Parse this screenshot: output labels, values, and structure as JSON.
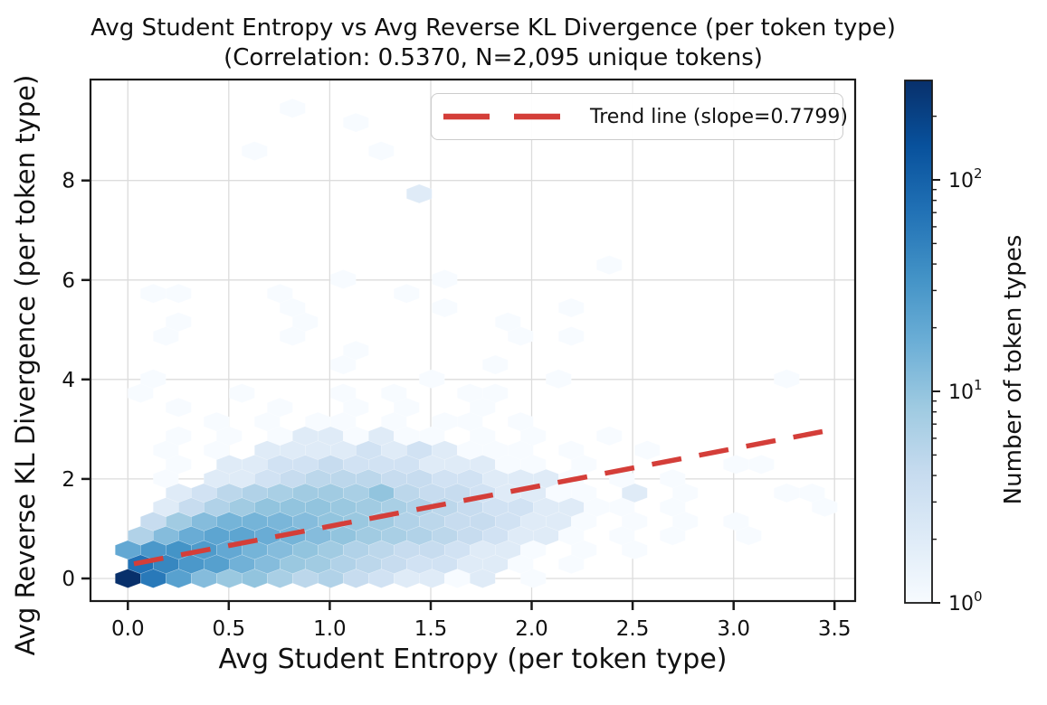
{
  "chart_data": {
    "type": "hexbin",
    "title": "Avg Student Entropy vs Avg Reverse KL Divergence (per token type)",
    "subtitle": "(Correlation: 0.5370, N=2,095 unique tokens)",
    "correlation": 0.537,
    "n_unique_tokens": "2,095",
    "xlabel": "Avg Student Entropy (per token type)",
    "ylabel": "Avg Reverse KL Divergence (per token type)",
    "xlim": [
      -0.185,
      3.602
    ],
    "ylim": [
      -0.455,
      10.03
    ],
    "x_tick_values": [
      0.0,
      0.5,
      1.0,
      1.5,
      2.0,
      2.5,
      3.0,
      3.5
    ],
    "x_tick_labels": [
      "0.0",
      "0.5",
      "1.0",
      "1.5",
      "2.0",
      "2.5",
      "3.0",
      "3.5"
    ],
    "y_tick_values": [
      0,
      2,
      4,
      6,
      8
    ],
    "y_tick_labels": [
      "0",
      "2",
      "4",
      "6",
      "8"
    ],
    "grid": true,
    "grid_color": "#dcdcdc",
    "frame_color": "#1a1a1a",
    "legend_position": "upper right",
    "trend": {
      "label": "Trend line (slope=0.7799)",
      "slope": 0.7799,
      "intercept": 0.27,
      "x_start": 0.03,
      "x_end": 3.44,
      "color": "#d43e39",
      "style": "dashed"
    },
    "colorbar": {
      "label": "Number of token types",
      "scale": "log",
      "vmin": 1,
      "vmax": 300,
      "tick_exponents": [
        0,
        1,
        2
      ],
      "cmap": "Blues",
      "cmap_stops": [
        "#f7fbff",
        "#deebf7",
        "#c6dbef",
        "#9ecae1",
        "#6baed6",
        "#4292c6",
        "#2171b5",
        "#08519c",
        "#08306b"
      ]
    },
    "hexbin": {
      "cell_dx": 0.1255,
      "cell_dy": 0.2864,
      "note": "cells are [col i, row j, count]; x=(i+(j%2)*0.5)*cell_dx, y=j*cell_dy",
      "cells": [
        [
          0,
          0,
          300
        ],
        [
          1,
          0,
          60
        ],
        [
          2,
          0,
          24
        ],
        [
          3,
          0,
          12
        ],
        [
          4,
          0,
          9
        ],
        [
          5,
          0,
          10
        ],
        [
          6,
          0,
          7
        ],
        [
          7,
          0,
          5
        ],
        [
          8,
          0,
          6
        ],
        [
          9,
          0,
          4
        ],
        [
          10,
          0,
          3
        ],
        [
          11,
          0,
          2
        ],
        [
          12,
          0,
          2
        ],
        [
          13,
          0,
          1
        ],
        [
          14,
          0,
          2
        ],
        [
          16,
          0,
          1
        ],
        [
          0,
          1,
          70
        ],
        [
          1,
          1,
          45
        ],
        [
          2,
          1,
          30
        ],
        [
          3,
          1,
          25
        ],
        [
          4,
          1,
          16
        ],
        [
          5,
          1,
          12
        ],
        [
          6,
          1,
          9
        ],
        [
          7,
          1,
          8
        ],
        [
          8,
          1,
          6
        ],
        [
          9,
          1,
          5
        ],
        [
          10,
          1,
          4
        ],
        [
          11,
          1,
          3
        ],
        [
          12,
          1,
          3
        ],
        [
          13,
          1,
          2
        ],
        [
          14,
          1,
          2
        ],
        [
          15,
          1,
          1
        ],
        [
          17,
          1,
          1
        ],
        [
          0,
          2,
          20
        ],
        [
          1,
          2,
          30
        ],
        [
          2,
          2,
          34
        ],
        [
          3,
          2,
          28
        ],
        [
          4,
          2,
          20
        ],
        [
          5,
          2,
          15
        ],
        [
          6,
          2,
          12
        ],
        [
          7,
          2,
          10
        ],
        [
          8,
          2,
          8
        ],
        [
          9,
          2,
          6
        ],
        [
          10,
          2,
          5
        ],
        [
          11,
          2,
          4
        ],
        [
          12,
          2,
          4
        ],
        [
          13,
          2,
          3
        ],
        [
          14,
          2,
          2
        ],
        [
          15,
          2,
          2
        ],
        [
          16,
          2,
          1
        ],
        [
          18,
          2,
          1
        ],
        [
          20,
          2,
          1
        ],
        [
          0,
          3,
          6
        ],
        [
          1,
          3,
          12
        ],
        [
          2,
          3,
          18
        ],
        [
          3,
          3,
          22
        ],
        [
          4,
          3,
          22
        ],
        [
          5,
          3,
          18
        ],
        [
          6,
          3,
          15
        ],
        [
          7,
          3,
          12
        ],
        [
          8,
          3,
          10
        ],
        [
          9,
          3,
          8
        ],
        [
          10,
          3,
          7
        ],
        [
          11,
          3,
          6
        ],
        [
          12,
          3,
          5
        ],
        [
          13,
          3,
          4
        ],
        [
          14,
          3,
          3
        ],
        [
          15,
          3,
          2
        ],
        [
          16,
          3,
          2
        ],
        [
          17,
          3,
          1
        ],
        [
          19,
          3,
          1
        ],
        [
          21,
          3,
          1
        ],
        [
          24,
          3,
          1
        ],
        [
          1,
          4,
          4
        ],
        [
          2,
          4,
          8
        ],
        [
          3,
          4,
          12
        ],
        [
          4,
          4,
          15
        ],
        [
          5,
          4,
          15
        ],
        [
          6,
          4,
          14
        ],
        [
          7,
          4,
          12
        ],
        [
          8,
          4,
          10
        ],
        [
          9,
          4,
          9
        ],
        [
          10,
          4,
          8
        ],
        [
          11,
          4,
          6
        ],
        [
          12,
          4,
          5
        ],
        [
          13,
          4,
          4
        ],
        [
          14,
          4,
          4
        ],
        [
          15,
          4,
          3
        ],
        [
          16,
          4,
          2
        ],
        [
          17,
          4,
          2
        ],
        [
          18,
          4,
          1
        ],
        [
          20,
          4,
          1
        ],
        [
          22,
          4,
          1
        ],
        [
          24,
          4,
          1
        ],
        [
          1,
          5,
          2
        ],
        [
          2,
          5,
          4
        ],
        [
          3,
          5,
          6
        ],
        [
          4,
          5,
          8
        ],
        [
          5,
          5,
          10
        ],
        [
          6,
          5,
          10
        ],
        [
          7,
          5,
          10
        ],
        [
          8,
          5,
          9
        ],
        [
          9,
          5,
          8
        ],
        [
          10,
          5,
          7
        ],
        [
          11,
          5,
          6
        ],
        [
          12,
          5,
          5
        ],
        [
          13,
          5,
          4
        ],
        [
          14,
          5,
          3
        ],
        [
          15,
          5,
          3
        ],
        [
          16,
          5,
          2
        ],
        [
          17,
          5,
          2
        ],
        [
          18,
          5,
          1
        ],
        [
          19,
          5,
          1
        ],
        [
          21,
          5,
          1
        ],
        [
          27,
          5,
          1
        ],
        [
          2,
          6,
          2
        ],
        [
          3,
          6,
          3
        ],
        [
          4,
          6,
          5
        ],
        [
          5,
          6,
          6
        ],
        [
          6,
          6,
          7
        ],
        [
          7,
          6,
          8
        ],
        [
          8,
          6,
          8
        ],
        [
          9,
          6,
          7
        ],
        [
          10,
          6,
          10
        ],
        [
          11,
          6,
          5
        ],
        [
          12,
          6,
          4
        ],
        [
          13,
          6,
          4
        ],
        [
          14,
          6,
          3
        ],
        [
          15,
          6,
          2
        ],
        [
          16,
          6,
          2
        ],
        [
          17,
          6,
          1
        ],
        [
          18,
          6,
          1
        ],
        [
          20,
          6,
          2
        ],
        [
          22,
          6,
          1
        ],
        [
          26,
          6,
          1
        ],
        [
          27,
          6,
          1
        ],
        [
          1,
          7,
          1
        ],
        [
          3,
          7,
          2
        ],
        [
          4,
          7,
          2
        ],
        [
          5,
          7,
          3
        ],
        [
          6,
          7,
          4
        ],
        [
          7,
          7,
          5
        ],
        [
          8,
          7,
          5
        ],
        [
          9,
          7,
          5
        ],
        [
          10,
          7,
          4
        ],
        [
          11,
          7,
          4
        ],
        [
          12,
          7,
          3
        ],
        [
          13,
          7,
          3
        ],
        [
          14,
          7,
          2
        ],
        [
          15,
          7,
          2
        ],
        [
          16,
          7,
          2
        ],
        [
          17,
          7,
          1
        ],
        [
          19,
          7,
          1
        ],
        [
          21,
          7,
          1
        ],
        [
          2,
          8,
          1
        ],
        [
          4,
          8,
          2
        ],
        [
          5,
          8,
          2
        ],
        [
          6,
          8,
          3
        ],
        [
          7,
          8,
          3
        ],
        [
          8,
          8,
          4
        ],
        [
          9,
          8,
          3
        ],
        [
          10,
          8,
          3
        ],
        [
          11,
          8,
          3
        ],
        [
          12,
          8,
          2
        ],
        [
          13,
          8,
          2
        ],
        [
          14,
          8,
          2
        ],
        [
          15,
          8,
          1
        ],
        [
          16,
          8,
          1
        ],
        [
          18,
          8,
          1
        ],
        [
          24,
          8,
          1
        ],
        [
          25,
          8,
          1
        ],
        [
          1,
          9,
          1
        ],
        [
          3,
          9,
          1
        ],
        [
          5,
          9,
          2
        ],
        [
          6,
          9,
          2
        ],
        [
          7,
          9,
          2
        ],
        [
          8,
          9,
          2
        ],
        [
          9,
          9,
          3
        ],
        [
          10,
          9,
          2
        ],
        [
          11,
          9,
          3
        ],
        [
          12,
          9,
          2
        ],
        [
          13,
          9,
          1
        ],
        [
          14,
          9,
          1
        ],
        [
          15,
          9,
          1
        ],
        [
          17,
          9,
          1
        ],
        [
          20,
          9,
          1
        ],
        [
          2,
          10,
          1
        ],
        [
          4,
          10,
          1
        ],
        [
          6,
          10,
          1
        ],
        [
          7,
          10,
          2
        ],
        [
          8,
          10,
          2
        ],
        [
          9,
          10,
          1
        ],
        [
          10,
          10,
          2
        ],
        [
          11,
          10,
          1
        ],
        [
          12,
          10,
          1
        ],
        [
          14,
          10,
          1
        ],
        [
          16,
          10,
          1
        ],
        [
          19,
          10,
          1
        ],
        [
          3,
          11,
          1
        ],
        [
          5,
          11,
          1
        ],
        [
          7,
          11,
          1
        ],
        [
          8,
          11,
          1
        ],
        [
          10,
          11,
          1
        ],
        [
          12,
          11,
          1
        ],
        [
          13,
          11,
          1
        ],
        [
          15,
          11,
          1
        ],
        [
          2,
          12,
          1
        ],
        [
          6,
          12,
          1
        ],
        [
          9,
          12,
          1
        ],
        [
          11,
          12,
          1
        ],
        [
          14,
          12,
          1
        ],
        [
          0,
          13,
          1
        ],
        [
          4,
          13,
          1
        ],
        [
          8,
          13,
          1
        ],
        [
          10,
          13,
          1
        ],
        [
          13,
          13,
          1
        ],
        [
          14,
          13,
          1
        ],
        [
          1,
          14,
          1
        ],
        [
          12,
          14,
          1
        ],
        [
          17,
          14,
          1
        ],
        [
          26,
          14,
          1
        ],
        [
          8,
          15,
          1
        ],
        [
          14,
          15,
          1
        ],
        [
          9,
          16,
          1
        ],
        [
          1,
          17,
          1
        ],
        [
          6,
          17,
          1
        ],
        [
          15,
          17,
          1
        ],
        [
          17,
          17,
          1
        ],
        [
          2,
          18,
          1
        ],
        [
          7,
          18,
          1
        ],
        [
          15,
          18,
          1
        ],
        [
          6,
          19,
          1
        ],
        [
          12,
          19,
          1
        ],
        [
          17,
          19,
          1
        ],
        [
          1,
          20,
          1
        ],
        [
          2,
          20,
          1
        ],
        [
          6,
          20,
          1
        ],
        [
          11,
          20,
          1
        ],
        [
          8,
          21,
          1
        ],
        [
          12,
          21,
          1
        ],
        [
          19,
          22,
          1
        ],
        [
          11,
          27,
          2
        ],
        [
          5,
          30,
          1
        ],
        [
          10,
          30,
          1
        ],
        [
          9,
          32,
          1
        ],
        [
          6,
          33,
          1
        ]
      ]
    }
  }
}
